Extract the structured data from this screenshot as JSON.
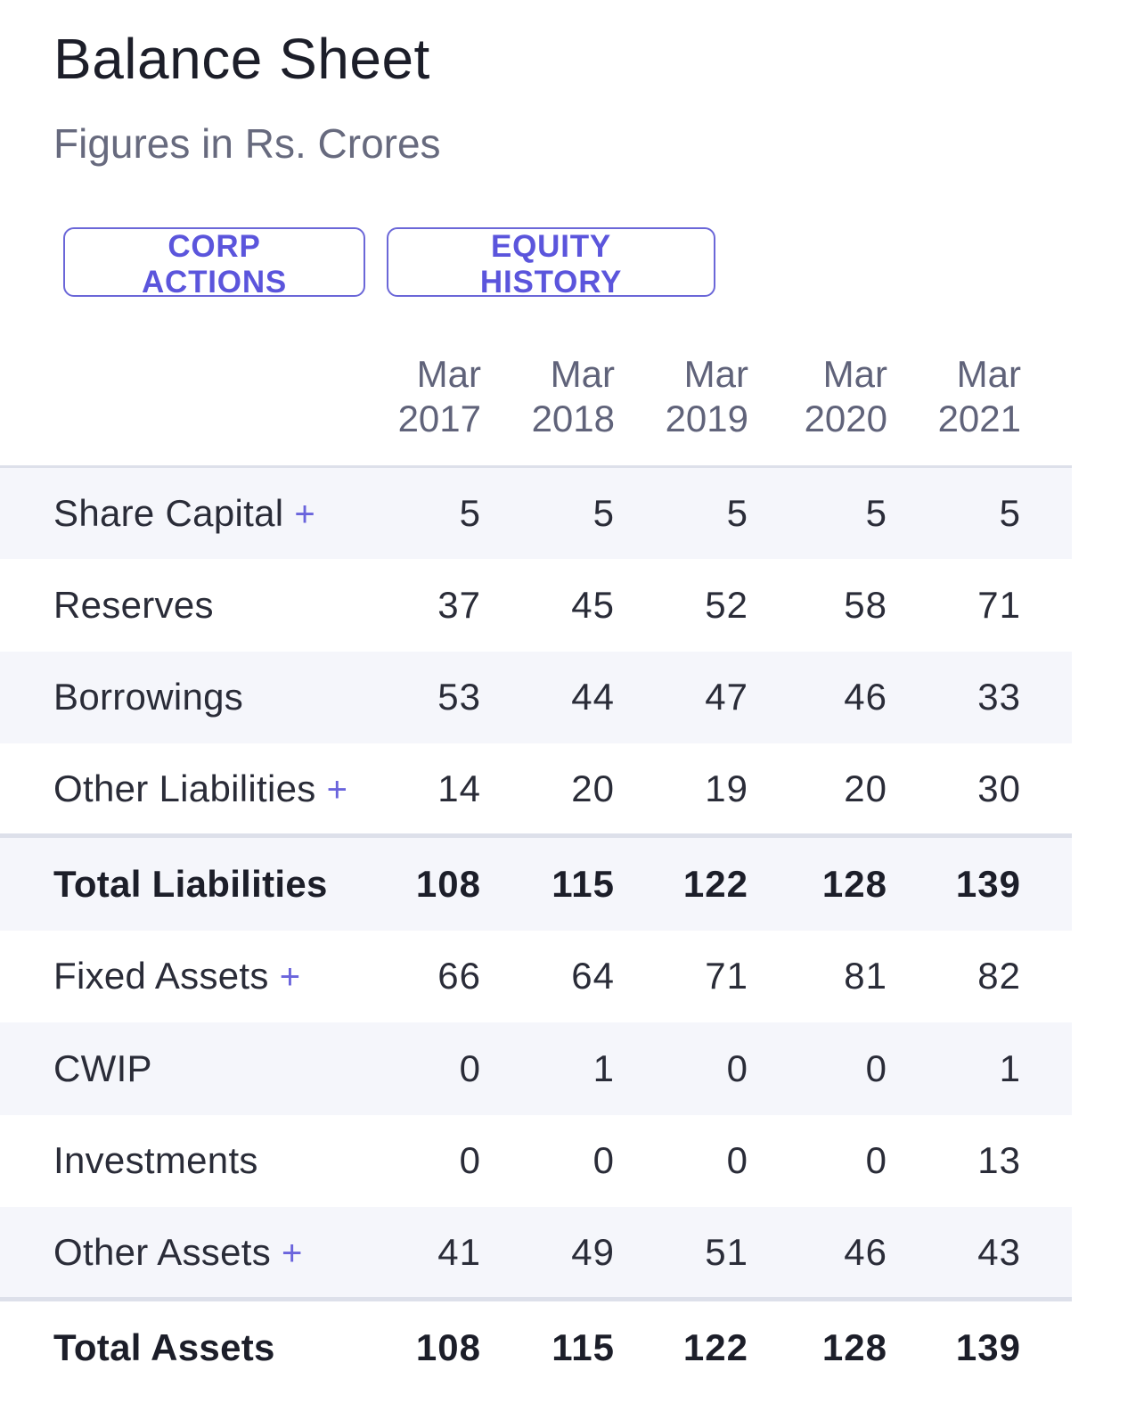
{
  "header": {
    "title": "Balance Sheet",
    "subtitle": "Figures in Rs. Crores"
  },
  "actions": {
    "corp_actions": "CORP ACTIONS",
    "equity_history": "EQUITY HISTORY"
  },
  "columns": [
    {
      "month": "Mar",
      "year": "2017"
    },
    {
      "month": "Mar",
      "year": "2018"
    },
    {
      "month": "Mar",
      "year": "2019"
    },
    {
      "month": "Mar",
      "year": "2020"
    },
    {
      "month": "Mar",
      "year": "2021"
    }
  ],
  "rows": [
    {
      "label": "Share Capital",
      "expand": "+",
      "values": [
        "5",
        "5",
        "5",
        "5",
        "5"
      ]
    },
    {
      "label": "Reserves",
      "values": [
        "37",
        "45",
        "52",
        "58",
        "71"
      ]
    },
    {
      "label": "Borrowings",
      "values": [
        "53",
        "44",
        "47",
        "46",
        "33"
      ]
    },
    {
      "label": "Other Liabilities",
      "expand": "+",
      "values": [
        "14",
        "20",
        "19",
        "20",
        "30"
      ]
    },
    {
      "label": "Total Liabilities",
      "values": [
        "108",
        "115",
        "122",
        "128",
        "139"
      ]
    },
    {
      "label": "Fixed Assets",
      "expand": "+",
      "values": [
        "66",
        "64",
        "71",
        "81",
        "82"
      ]
    },
    {
      "label": "CWIP",
      "values": [
        "0",
        "1",
        "0",
        "0",
        "1"
      ]
    },
    {
      "label": "Investments",
      "values": [
        "0",
        "0",
        "0",
        "0",
        "13"
      ]
    },
    {
      "label": "Other Assets",
      "expand": "+",
      "values": [
        "41",
        "49",
        "51",
        "46",
        "43"
      ]
    },
    {
      "label": "Total Assets",
      "values": [
        "108",
        "115",
        "122",
        "128",
        "139"
      ]
    }
  ]
}
